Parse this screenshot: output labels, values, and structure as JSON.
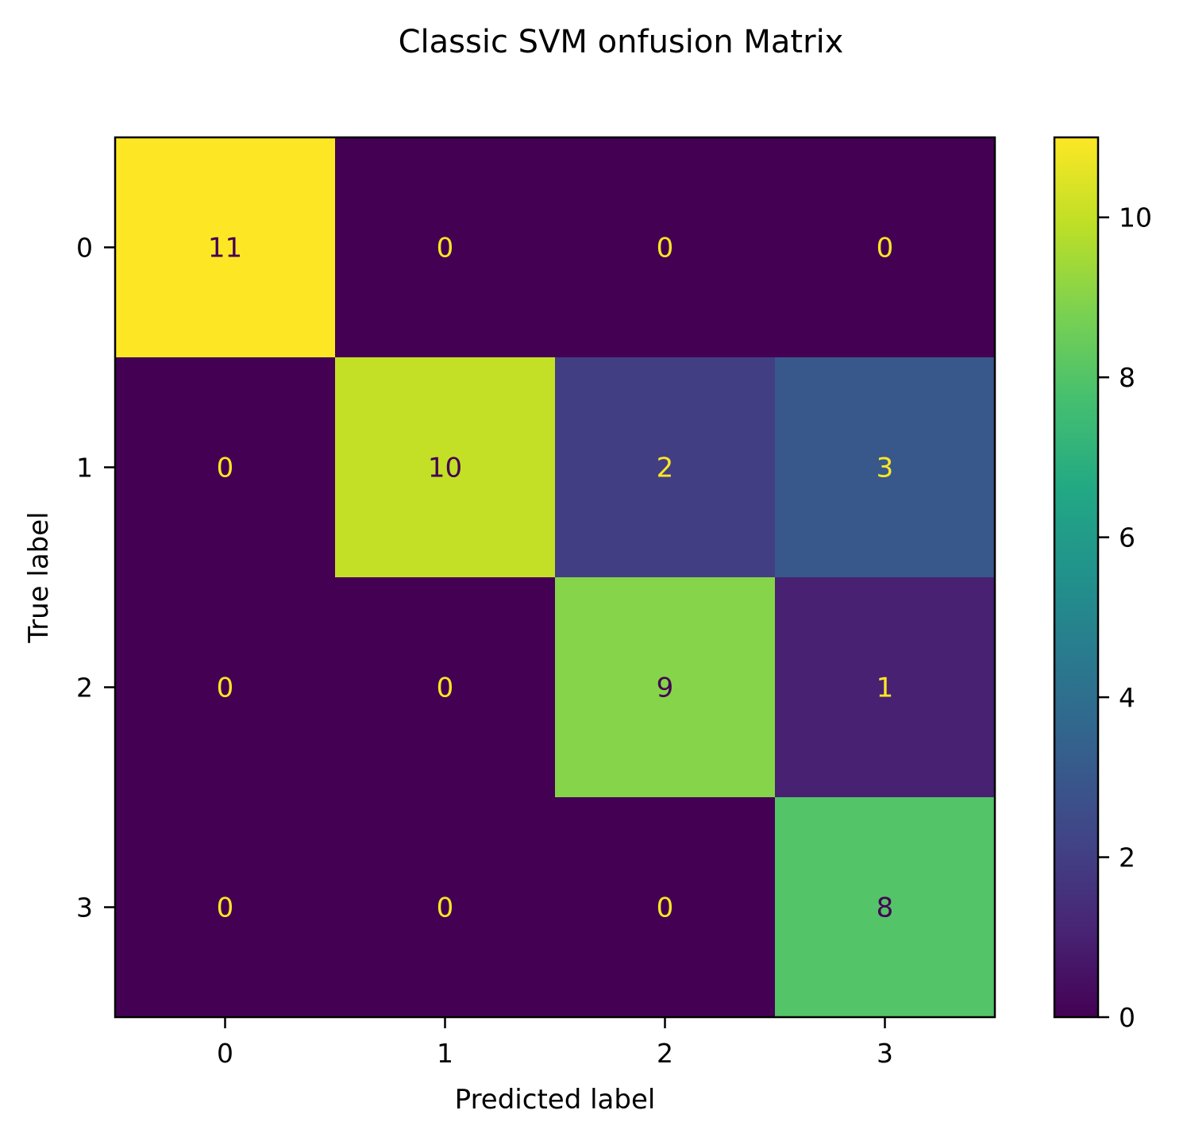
{
  "chart_data": {
    "type": "heatmap",
    "title": "Classic SVM onfusion Matrix",
    "xlabel": "Predicted label",
    "ylabel": "True label",
    "x_categories": [
      "0",
      "1",
      "2",
      "3"
    ],
    "y_categories": [
      "0",
      "1",
      "2",
      "3"
    ],
    "values": [
      [
        11,
        0,
        0,
        0
      ],
      [
        0,
        10,
        2,
        3
      ],
      [
        0,
        0,
        9,
        1
      ],
      [
        0,
        0,
        0,
        8
      ]
    ],
    "colormap": "viridis",
    "colorbar": {
      "range": [
        0,
        11
      ],
      "ticks": [
        0,
        2,
        4,
        6,
        8,
        10
      ]
    },
    "text_colors": {
      "on_dark": "#fde725",
      "on_light": "#440154"
    }
  }
}
